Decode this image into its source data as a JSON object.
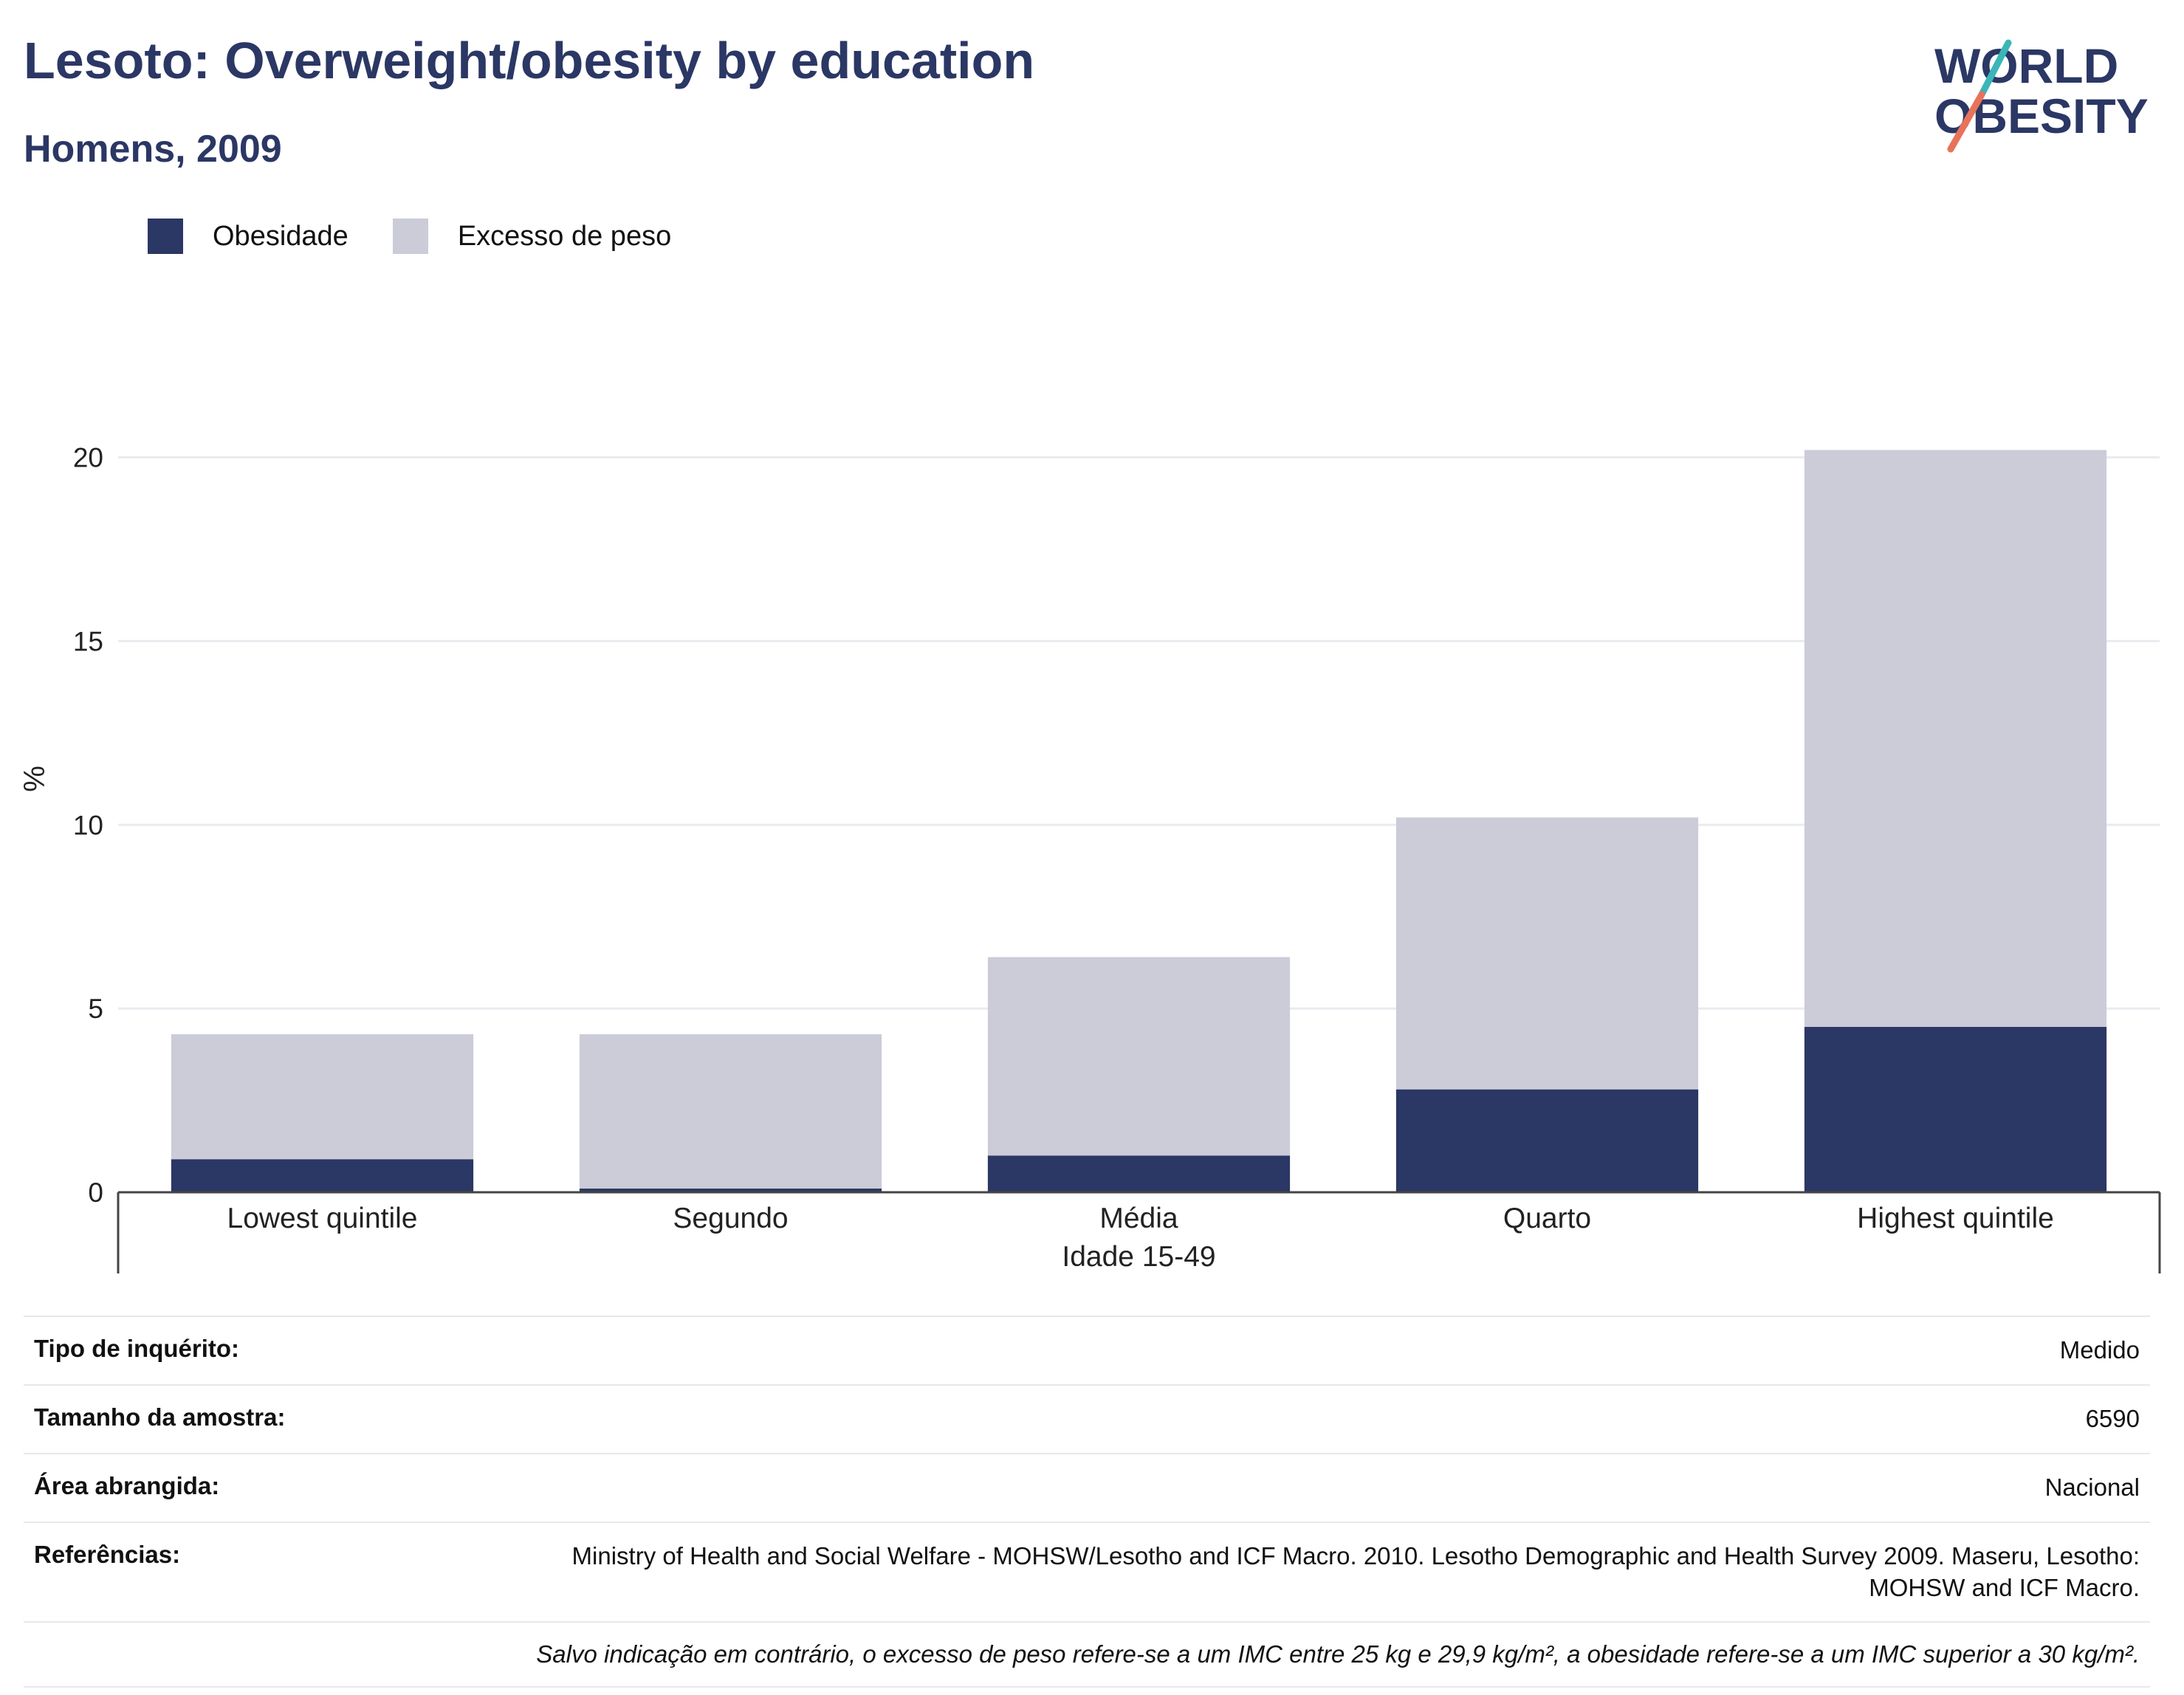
{
  "header": {
    "title": "Lesoto: Overweight/obesity by education",
    "subtitle": "Homens, 2009"
  },
  "logo": {
    "line1": "WORLD",
    "line2": "OBESITY"
  },
  "legend": [
    {
      "label": "Obesidade",
      "color": "#2b3764"
    },
    {
      "label": "Excesso de peso",
      "color": "#cbccd8"
    }
  ],
  "chart_data": {
    "type": "bar",
    "stacked": true,
    "categories": [
      "Lowest quintile",
      "Segundo",
      "Média",
      "Quarto",
      "Highest quintile"
    ],
    "series": [
      {
        "name": "Obesidade",
        "values": [
          0.9,
          0.1,
          1.0,
          2.8,
          4.5
        ],
        "color": "#2b3764"
      },
      {
        "name": "Excesso de peso",
        "values": [
          3.4,
          4.2,
          5.4,
          7.4,
          15.7
        ],
        "color": "#cbccd8"
      }
    ],
    "ylabel": "%",
    "xlabel": "Idade 15-49",
    "ylim": [
      0,
      22
    ],
    "yticks": [
      0,
      5,
      10,
      15,
      20
    ],
    "grid": true
  },
  "meta": {
    "survey_type_label": "Tipo de inquérito:",
    "survey_type_value": "Medido",
    "sample_size_label": "Tamanho da amostra:",
    "sample_size_value": "6590",
    "area_label": "Área abrangida:",
    "area_value": "Nacional",
    "references_label": "Referências:",
    "references_value": "Ministry of Health and Social Welfare - MOHSW/Lesotho and ICF Macro. 2010. Lesotho Demographic and Health Survey 2009. Maseru, Lesotho: MOHSW and ICF Macro.",
    "note": "Salvo indicação em contrário, o excesso de peso refere-se a um IMC entre 25 kg e 29,9 kg/m², a obesidade refere-se a um IMC superior a 30 kg/m²."
  }
}
